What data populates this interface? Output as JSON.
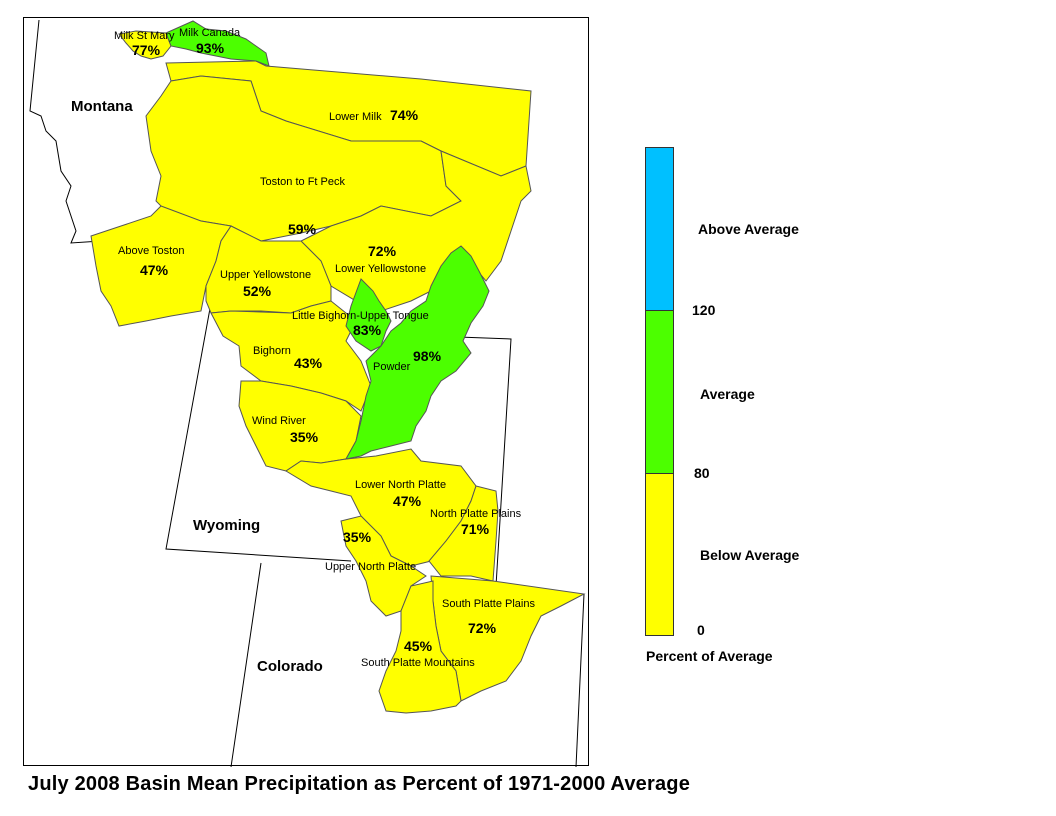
{
  "caption": "July 2008 Basin Mean Precipitation as Percent of 1971-2000 Average",
  "colors": {
    "below": "#ffff00",
    "average": "#4cff00",
    "above": "#00c0ff",
    "border": "#555555"
  },
  "states": {
    "montana": "Montana",
    "wyoming": "Wyoming",
    "colorado": "Colorado"
  },
  "basins": {
    "milk_st_mary": {
      "name": "Milk St Mary",
      "pct": "77%",
      "status": "below"
    },
    "milk_canada": {
      "name": "Milk Canada",
      "pct": "93%",
      "status": "average"
    },
    "lower_milk": {
      "name": "Lower Milk",
      "pct": "74%",
      "status": "below"
    },
    "toston_ft_peck": {
      "name": "Toston to Ft Peck",
      "pct": "59%",
      "status": "below"
    },
    "above_toston": {
      "name": "Above Toston",
      "pct": "47%",
      "status": "below"
    },
    "upper_yellowstone": {
      "name": "Upper Yellowstone",
      "pct": "52%",
      "status": "below"
    },
    "lower_yellowstone": {
      "name": "Lower Yellowstone",
      "pct": "72%",
      "status": "below"
    },
    "little_bighorn": {
      "name": "Little Bighorn-Upper Tongue",
      "pct": "83%",
      "status": "average"
    },
    "bighorn": {
      "name": "Bighorn",
      "pct": "43%",
      "status": "below"
    },
    "powder": {
      "name": "Powder",
      "pct": "98%",
      "status": "average"
    },
    "wind_river": {
      "name": "Wind River",
      "pct": "35%",
      "status": "below"
    },
    "lower_north_platte": {
      "name": "Lower North Platte",
      "pct": "47%",
      "status": "below"
    },
    "north_platte_plains": {
      "name": "North Platte Plains",
      "pct": "71%",
      "status": "below"
    },
    "upper_north_platte": {
      "name": "Upper North Platte",
      "pct": "35%",
      "status": "below"
    },
    "south_platte_plains": {
      "name": "South Platte Plains",
      "pct": "72%",
      "status": "below"
    },
    "south_platte_mountains": {
      "name": "South Platte Mountains",
      "pct": "45%",
      "status": "below"
    }
  },
  "legend": {
    "title": "Percent of Average",
    "above_label": "Above Average",
    "average_label": "Average",
    "below_label": "Below Average",
    "tick_120": "120",
    "tick_80": "80",
    "tick_0": "0"
  }
}
